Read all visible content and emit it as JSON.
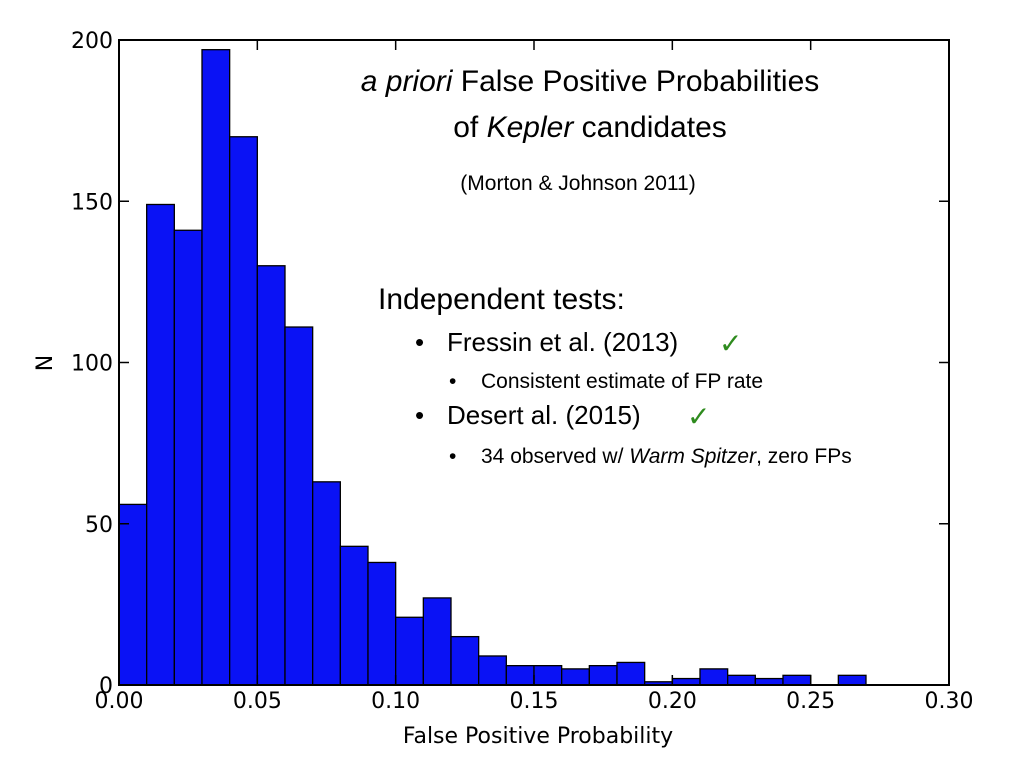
{
  "chart_data": {
    "type": "bar",
    "title_line1_italic": "a priori",
    "title_line1_rest": " False Positive Probabilities",
    "title_line2_pre": "of ",
    "title_line2_italic": "Kepler",
    "title_line2_post": " candidates",
    "citation": "(Morton & Johnson 2011)",
    "xlabel": "False Positive Probability",
    "ylabel": "N",
    "xlim": [
      0.0,
      0.3
    ],
    "ylim": [
      0,
      200
    ],
    "x_ticks": [
      "0.00",
      "0.05",
      "0.10",
      "0.15",
      "0.20",
      "0.25",
      "0.30"
    ],
    "y_ticks": [
      "0",
      "50",
      "100",
      "150",
      "200"
    ],
    "bin_width": 0.01,
    "bin_starts": [
      0.0,
      0.01,
      0.02,
      0.03,
      0.04,
      0.05,
      0.06,
      0.07,
      0.08,
      0.09,
      0.1,
      0.11,
      0.12,
      0.13,
      0.14,
      0.15,
      0.16,
      0.17,
      0.18,
      0.19,
      0.2,
      0.21,
      0.22,
      0.23,
      0.24,
      0.25,
      0.26,
      0.27,
      0.28,
      0.29
    ],
    "values": [
      56,
      149,
      141,
      197,
      170,
      130,
      111,
      63,
      43,
      38,
      21,
      27,
      15,
      9,
      6,
      6,
      5,
      6,
      7,
      1,
      2,
      5,
      3,
      2,
      3,
      0,
      3,
      0,
      0,
      0
    ],
    "bar_color": "#0a12f5"
  },
  "annotations": {
    "tests_heading": "Independent tests:",
    "items": [
      {
        "bullet": "•",
        "text": "Fressin et al. (2013)",
        "check": "✓",
        "sub_bullet": "•",
        "sub_text": "Consistent estimate of FP rate"
      },
      {
        "bullet": "•",
        "text": "Desert al. (2015)",
        "check": "✓",
        "sub_bullet": "•",
        "sub_pre": "34 observed w/ ",
        "sub_italic": "Warm Spitzer",
        "sub_post": ", zero FPs"
      }
    ],
    "check_color": "#2e8b1e"
  }
}
